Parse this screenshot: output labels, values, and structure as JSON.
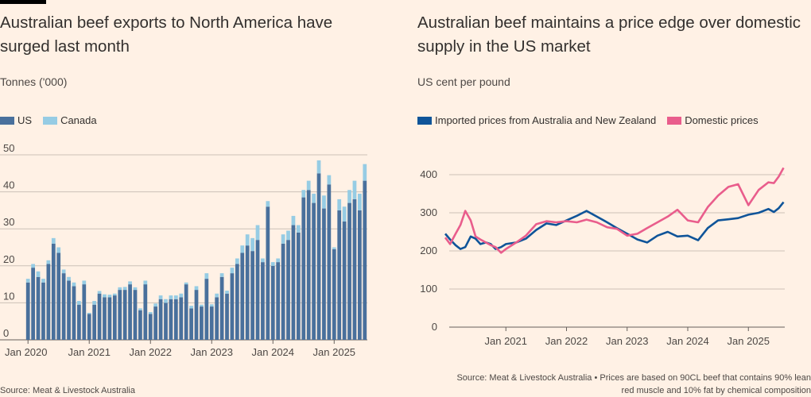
{
  "colors": {
    "background": "#FFF1E5",
    "navy": "#0F5499",
    "us_bar": "#49709C",
    "canada_bar": "#96CCE4",
    "pink": "#E95D8C",
    "grid": "#CCC1B7"
  },
  "left": {
    "title": "Australian beef exports to North America have surged last month",
    "units": "Tonnes ('000)",
    "source": "Source: Meat & Livestock Australia"
  },
  "right": {
    "title": "Australian beef maintains a price edge over domestic supply in the US market",
    "units": "US cent per pound",
    "source_line1": "Source: Meat & Livestock Australia • Prices are based on 90CL beef that contains 90% lean",
    "source_line2": "red muscle and 10% fat by chemical composition"
  },
  "chart_data": [
    {
      "type": "bar",
      "stacked": true,
      "title": "Australian beef exports to North America have surged last month",
      "ylabel": "Tonnes ('000)",
      "ylim": [
        0,
        50
      ],
      "yticks": [
        0,
        10,
        20,
        30,
        40,
        50
      ],
      "xticks": [
        "Jan 2020",
        "Jan 2021",
        "Jan 2022",
        "Jan 2023",
        "Jan 2024",
        "Jan 2025"
      ],
      "x_start": "2020-01",
      "legend_position": "top-left",
      "grid": true,
      "series": [
        {
          "name": "US",
          "color": "#49709C",
          "values": [
            15.5,
            19.5,
            17,
            15.5,
            20.5,
            26,
            23.5,
            18,
            16,
            14.5,
            9.5,
            15,
            7,
            9.5,
            12.5,
            11.5,
            11.5,
            12,
            13.5,
            13.5,
            15,
            13.5,
            8,
            15,
            7,
            9,
            11,
            10,
            11,
            11,
            11.5,
            15,
            8.5,
            13.5,
            9,
            16.5,
            9,
            11.5,
            17,
            12.5,
            18,
            20.5,
            23.5,
            25.5,
            24,
            27,
            21,
            36,
            20,
            21,
            26,
            27,
            31,
            29,
            38.5,
            40.5,
            37,
            45,
            35.5,
            42,
            24.5,
            35,
            32,
            37,
            38,
            35,
            43
          ]
        },
        {
          "name": "Canada",
          "color": "#96CCE4",
          "values": [
            1,
            1,
            1.5,
            1,
            1,
            1.5,
            1.5,
            1,
            1,
            1,
            1,
            1,
            0.3,
            1,
            0.7,
            0.8,
            0.7,
            0.5,
            0.7,
            0.8,
            0.8,
            0.7,
            0.5,
            1,
            0.5,
            0.8,
            1,
            1,
            1,
            1,
            1,
            0.5,
            0.7,
            1,
            0.5,
            1.5,
            0.6,
            1,
            1,
            0.8,
            1.5,
            1.5,
            2,
            3,
            3.5,
            4,
            1,
            1.5,
            1,
            1,
            2.5,
            2.5,
            2.5,
            2,
            2,
            2.5,
            2.5,
            3.5,
            3.5,
            2.5,
            0.5,
            3,
            4,
            3.5,
            5,
            4.5,
            4.5
          ]
        }
      ]
    },
    {
      "type": "line",
      "title": "Australian beef maintains a price edge over domestic supply in the US market",
      "ylabel": "US cent per pound",
      "ylim": [
        0,
        400
      ],
      "yticks": [
        0,
        100,
        200,
        300,
        400
      ],
      "xticks": [
        "Jan 2021",
        "Jan 2022",
        "Jan 2023",
        "Jan 2024",
        "Jan 2025"
      ],
      "x_start": "2020-01",
      "x_end": "2025-08",
      "legend_position": "top-left",
      "grid": true,
      "series": [
        {
          "name": "Imported prices from Australia and New Zealand",
          "color": "#0F5499",
          "points": [
            [
              2020.0,
              245
            ],
            [
              2020.08,
              230
            ],
            [
              2020.17,
              215
            ],
            [
              2020.25,
              205
            ],
            [
              2020.33,
              210
            ],
            [
              2020.42,
              238
            ],
            [
              2020.5,
              232
            ],
            [
              2020.58,
              218
            ],
            [
              2020.67,
              222
            ],
            [
              2020.75,
              218
            ],
            [
              2020.83,
              205
            ],
            [
              2020.92,
              210
            ],
            [
              2021.0,
              218
            ],
            [
              2021.17,
              222
            ],
            [
              2021.33,
              232
            ],
            [
              2021.5,
              255
            ],
            [
              2021.67,
              272
            ],
            [
              2021.83,
              268
            ],
            [
              2022.0,
              280
            ],
            [
              2022.17,
              292
            ],
            [
              2022.33,
              305
            ],
            [
              2022.5,
              290
            ],
            [
              2022.67,
              275
            ],
            [
              2022.83,
              260
            ],
            [
              2023.0,
              245
            ],
            [
              2023.17,
              230
            ],
            [
              2023.33,
              222
            ],
            [
              2023.5,
              240
            ],
            [
              2023.67,
              250
            ],
            [
              2023.83,
              238
            ],
            [
              2024.0,
              240
            ],
            [
              2024.17,
              228
            ],
            [
              2024.33,
              260
            ],
            [
              2024.5,
              280
            ],
            [
              2024.67,
              283
            ],
            [
              2024.83,
              286
            ],
            [
              2025.0,
              295
            ],
            [
              2025.17,
              300
            ],
            [
              2025.33,
              310
            ],
            [
              2025.42,
              302
            ],
            [
              2025.5,
              312
            ],
            [
              2025.58,
              328
            ]
          ]
        },
        {
          "name": "Domestic prices",
          "color": "#E95D8C",
          "points": [
            [
              2020.0,
              235
            ],
            [
              2020.08,
              218
            ],
            [
              2020.17,
              245
            ],
            [
              2020.25,
              268
            ],
            [
              2020.33,
              305
            ],
            [
              2020.42,
              280
            ],
            [
              2020.5,
              238
            ],
            [
              2020.58,
              230
            ],
            [
              2020.67,
              222
            ],
            [
              2020.75,
              215
            ],
            [
              2020.83,
              210
            ],
            [
              2020.92,
              195
            ],
            [
              2021.0,
              205
            ],
            [
              2021.17,
              222
            ],
            [
              2021.33,
              240
            ],
            [
              2021.5,
              270
            ],
            [
              2021.67,
              278
            ],
            [
              2021.83,
              275
            ],
            [
              2022.0,
              278
            ],
            [
              2022.17,
              275
            ],
            [
              2022.33,
              282
            ],
            [
              2022.5,
              275
            ],
            [
              2022.67,
              262
            ],
            [
              2022.83,
              258
            ],
            [
              2023.0,
              240
            ],
            [
              2023.17,
              245
            ],
            [
              2023.33,
              260
            ],
            [
              2023.5,
              275
            ],
            [
              2023.67,
              290
            ],
            [
              2023.83,
              308
            ],
            [
              2024.0,
              280
            ],
            [
              2024.17,
              275
            ],
            [
              2024.33,
              315
            ],
            [
              2024.5,
              345
            ],
            [
              2024.67,
              368
            ],
            [
              2024.83,
              375
            ],
            [
              2025.0,
              320
            ],
            [
              2025.17,
              360
            ],
            [
              2025.33,
              380
            ],
            [
              2025.42,
              378
            ],
            [
              2025.5,
              395
            ],
            [
              2025.58,
              418
            ]
          ]
        }
      ]
    }
  ]
}
